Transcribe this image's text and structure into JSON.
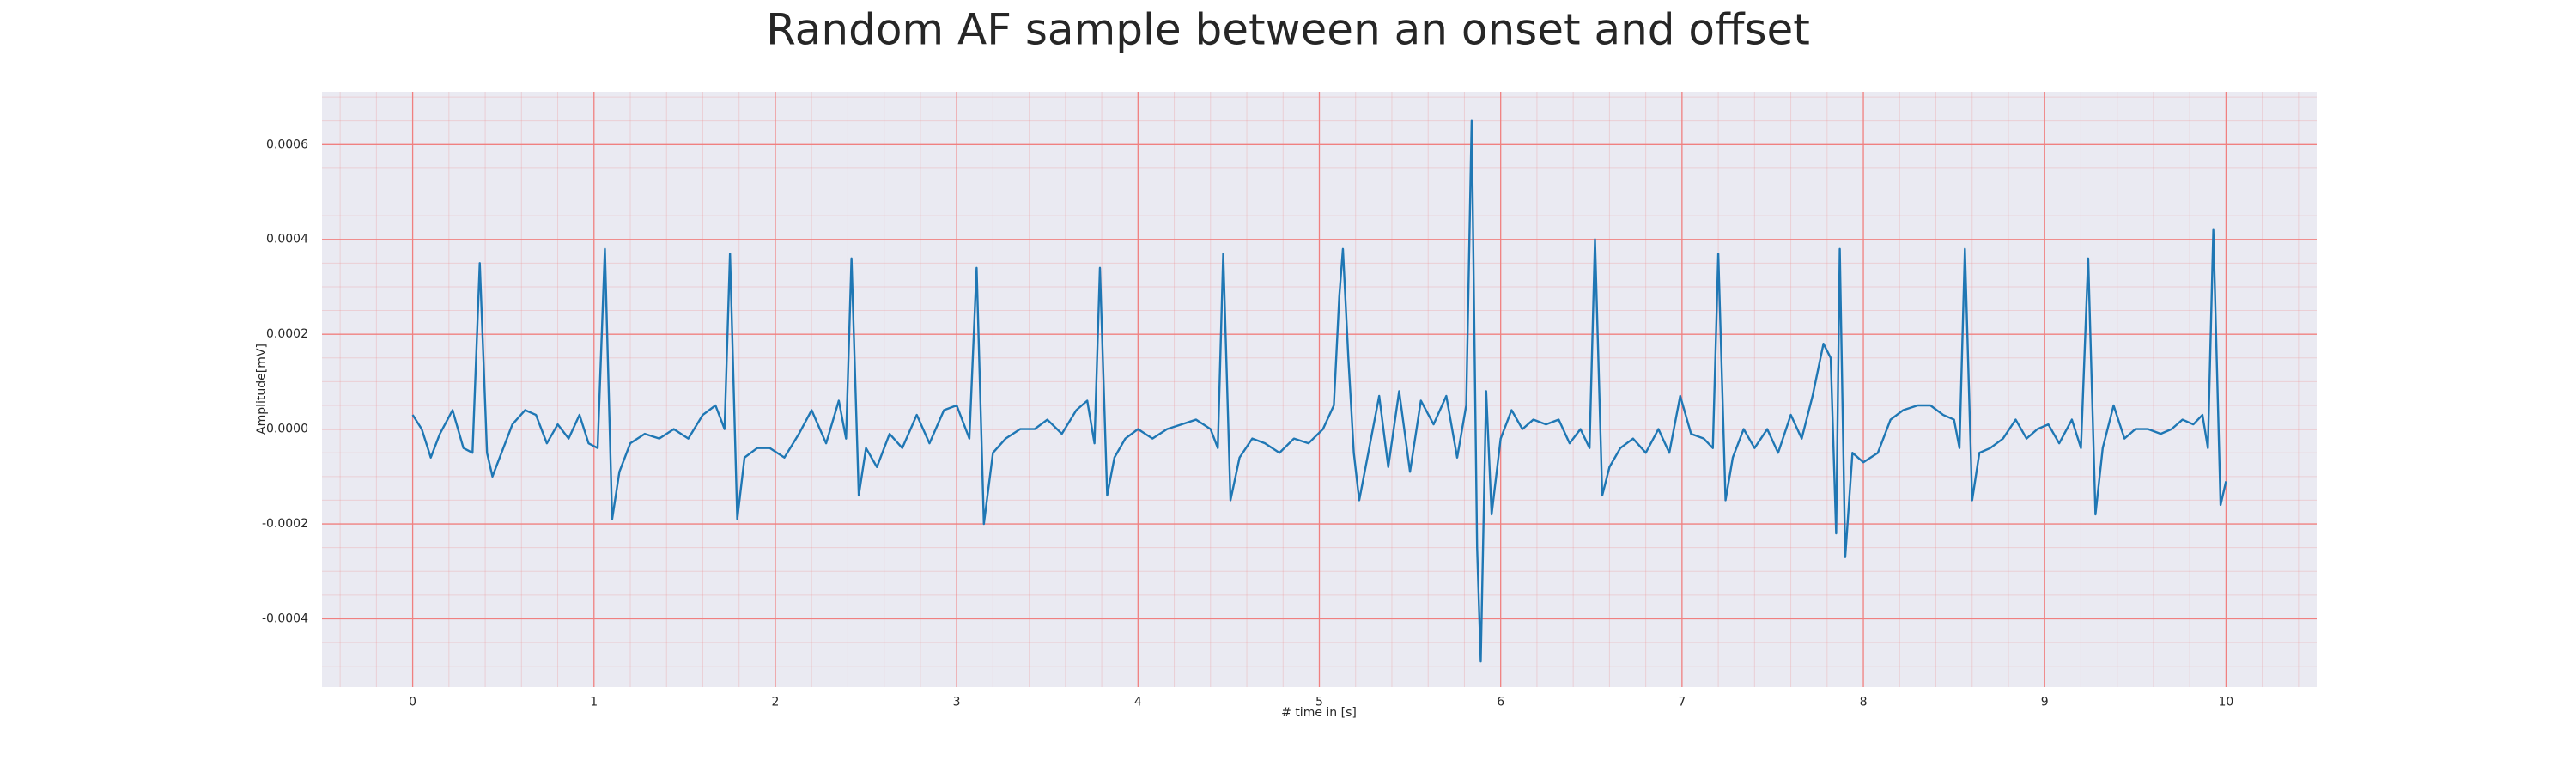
{
  "chart_data": {
    "type": "line",
    "title": "Random AF sample between an onset and offset",
    "xlabel": "# time in [s]",
    "ylabel": "Amplitude[mV]",
    "xlim": [
      -0.5,
      10.5
    ],
    "ylim": [
      -0.000544,
      0.000711
    ],
    "xticks": [
      0,
      1,
      2,
      3,
      4,
      5,
      6,
      7,
      8,
      9,
      10
    ],
    "yticks": [
      {
        "value": -0.0004,
        "label": "-0.0004"
      },
      {
        "value": -0.0002,
        "label": "-0.0002"
      },
      {
        "value": 0,
        "label": "0.0000"
      },
      {
        "value": 0.0002,
        "label": "0.0002"
      },
      {
        "value": 0.0004,
        "label": "0.0004"
      },
      {
        "value": 0.0006,
        "label": "0.0006"
      }
    ],
    "grid": true,
    "minor_grid": true,
    "grid_color": "#f08080",
    "background": "#eaeaf2",
    "series": [
      {
        "color": "#1f77b4",
        "x": [
          0.0,
          0.05,
          0.1,
          0.15,
          0.22,
          0.28,
          0.33,
          0.37,
          0.41,
          0.44,
          0.48,
          0.55,
          0.62,
          0.68,
          0.74,
          0.8,
          0.86,
          0.92,
          0.97,
          1.02,
          1.06,
          1.1,
          1.14,
          1.2,
          1.28,
          1.36,
          1.44,
          1.52,
          1.6,
          1.67,
          1.72,
          1.75,
          1.79,
          1.83,
          1.9,
          1.97,
          2.05,
          2.13,
          2.2,
          2.28,
          2.35,
          2.39,
          2.42,
          2.46,
          2.5,
          2.56,
          2.63,
          2.7,
          2.78,
          2.85,
          2.93,
          3.0,
          3.07,
          3.11,
          3.15,
          3.2,
          3.27,
          3.35,
          3.43,
          3.5,
          3.58,
          3.66,
          3.72,
          3.76,
          3.79,
          3.83,
          3.87,
          3.93,
          4.0,
          4.08,
          4.16,
          4.24,
          4.32,
          4.4,
          4.44,
          4.47,
          4.51,
          4.56,
          4.63,
          4.7,
          4.78,
          4.86,
          4.94,
          5.02,
          5.08,
          5.11,
          5.13,
          5.16,
          5.19,
          5.22,
          5.27,
          5.33,
          5.38,
          5.44,
          5.5,
          5.56,
          5.63,
          5.7,
          5.76,
          5.81,
          5.84,
          5.87,
          5.89,
          5.92,
          5.95,
          6.0,
          6.06,
          6.12,
          6.18,
          6.25,
          6.32,
          6.38,
          6.44,
          6.49,
          6.52,
          6.56,
          6.6,
          6.66,
          6.73,
          6.8,
          6.87,
          6.93,
          6.99,
          7.05,
          7.12,
          7.17,
          7.2,
          7.24,
          7.28,
          7.34,
          7.4,
          7.47,
          7.53,
          7.6,
          7.66,
          7.72,
          7.78,
          7.82,
          7.85,
          7.87,
          7.9,
          7.94,
          8.0,
          8.08,
          8.15,
          8.22,
          8.3,
          8.37,
          8.44,
          8.5,
          8.53,
          8.56,
          8.6,
          8.64,
          8.7,
          8.77,
          8.84,
          8.9,
          8.96,
          9.02,
          9.08,
          9.15,
          9.2,
          9.24,
          9.28,
          9.32,
          9.38,
          9.44,
          9.5,
          9.57,
          9.64,
          9.7,
          9.76,
          9.82,
          9.87,
          9.9,
          9.93,
          9.97,
          10.0
        ],
        "values": [
          3e-05,
          0.0,
          -6e-05,
          -1e-05,
          4e-05,
          -4e-05,
          -5e-05,
          0.00035,
          -5e-05,
          -0.0001,
          -6e-05,
          1e-05,
          4e-05,
          3e-05,
          -3e-05,
          1e-05,
          -2e-05,
          3e-05,
          -3e-05,
          -4e-05,
          0.00038,
          -0.00019,
          -9e-05,
          -3e-05,
          -1e-05,
          -2e-05,
          0.0,
          -2e-05,
          3e-05,
          5e-05,
          0.0,
          0.00037,
          -0.00019,
          -6e-05,
          -4e-05,
          -4e-05,
          -6e-05,
          -1e-05,
          4e-05,
          -3e-05,
          6e-05,
          -2e-05,
          0.00036,
          -0.00014,
          -4e-05,
          -8e-05,
          -1e-05,
          -4e-05,
          3e-05,
          -3e-05,
          4e-05,
          5e-05,
          -2e-05,
          0.00034,
          -0.0002,
          -5e-05,
          -2e-05,
          0.0,
          0.0,
          2e-05,
          -1e-05,
          4e-05,
          6e-05,
          -3e-05,
          0.00034,
          -0.00014,
          -6e-05,
          -2e-05,
          0.0,
          -2e-05,
          0.0,
          1e-05,
          2e-05,
          0.0,
          -4e-05,
          0.00037,
          -0.00015,
          -6e-05,
          -2e-05,
          -3e-05,
          -5e-05,
          -2e-05,
          -3e-05,
          0.0,
          5e-05,
          0.00028,
          0.00038,
          0.00015,
          -5e-05,
          -0.00015,
          -5e-05,
          7e-05,
          -8e-05,
          8e-05,
          -9e-05,
          6e-05,
          1e-05,
          7e-05,
          -6e-05,
          5e-05,
          0.00065,
          -0.00025,
          -0.00049,
          8e-05,
          -0.00018,
          -2e-05,
          4e-05,
          0.0,
          2e-05,
          1e-05,
          2e-05,
          -3e-05,
          0.0,
          -4e-05,
          0.0004,
          -0.00014,
          -8e-05,
          -4e-05,
          -2e-05,
          -5e-05,
          0.0,
          -5e-05,
          7e-05,
          -1e-05,
          -2e-05,
          -4e-05,
          0.00037,
          -0.00015,
          -6e-05,
          0.0,
          -4e-05,
          0.0,
          -5e-05,
          3e-05,
          -2e-05,
          7e-05,
          0.00018,
          0.00015,
          -0.00022,
          0.00038,
          -0.00027,
          -5e-05,
          -7e-05,
          -5e-05,
          2e-05,
          4e-05,
          5e-05,
          5e-05,
          3e-05,
          2e-05,
          -4e-05,
          0.00038,
          -0.00015,
          -5e-05,
          -4e-05,
          -2e-05,
          2e-05,
          -2e-05,
          0.0,
          1e-05,
          -3e-05,
          2e-05,
          -4e-05,
          0.00036,
          -0.00018,
          -4e-05,
          5e-05,
          -2e-05,
          0.0,
          0.0,
          -1e-05,
          0.0,
          2e-05,
          1e-05,
          3e-05,
          -4e-05,
          0.00042,
          -0.00016,
          -0.00011
        ]
      }
    ]
  }
}
